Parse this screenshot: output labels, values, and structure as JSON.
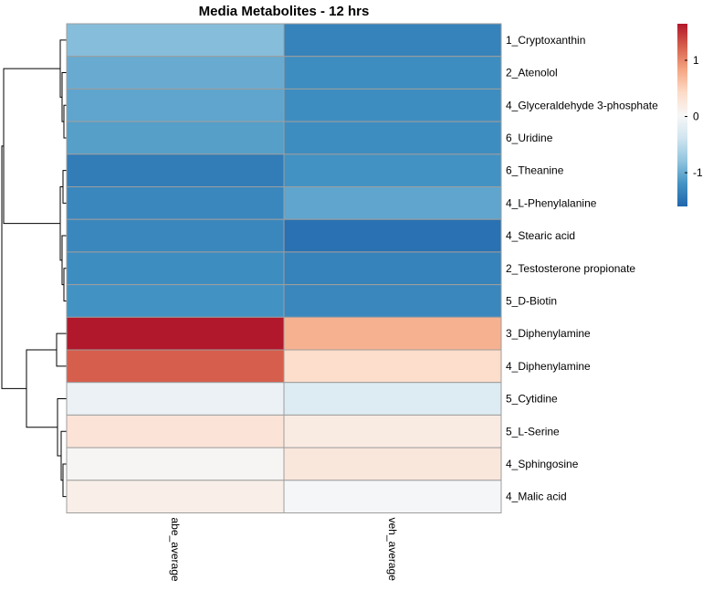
{
  "chart_data": {
    "type": "heatmap",
    "title": "Media Metabolites - 12 hrs",
    "columns": [
      "abe_average",
      "veh_average"
    ],
    "rows": [
      "1_Cryptoxanthin",
      "2_Atenolol",
      "4_Glyceraldehyde 3-phosphate",
      "6_Uridine",
      "6_Theanine",
      "4_L-Phenylalanine",
      "4_Stearic acid",
      "2_Testosterone propionate",
      "5_D-Biotin",
      "3_Diphenylamine",
      "4_Diphenylamine",
      "5_Cytidine",
      "5_L-Serine",
      "4_Sphingosine",
      "4_Malic acid"
    ],
    "values": [
      [
        -0.85,
        -1.35
      ],
      [
        -1.0,
        -1.25
      ],
      [
        -1.05,
        -1.25
      ],
      [
        -1.1,
        -1.25
      ],
      [
        -1.4,
        -1.2
      ],
      [
        -1.3,
        -1.05
      ],
      [
        -1.3,
        -1.5
      ],
      [
        -1.25,
        -1.35
      ],
      [
        -1.2,
        -1.3
      ],
      [
        1.65,
        0.75
      ],
      [
        1.25,
        0.4
      ],
      [
        -0.1,
        -0.25
      ],
      [
        0.3,
        0.2
      ],
      [
        0.05,
        0.25
      ],
      [
        0.15,
        0.0
      ]
    ],
    "legend": {
      "ticks": [
        1,
        0,
        -1
      ],
      "range": [
        -1.6,
        1.65
      ],
      "colors": [
        "#2166ac",
        "#4393c3",
        "#92c5de",
        "#d1e5f0",
        "#f7f7f7",
        "#fddbc7",
        "#f4a582",
        "#d6604d",
        "#b2182b"
      ],
      "placement": "top-right"
    },
    "dendrogram": true
  }
}
